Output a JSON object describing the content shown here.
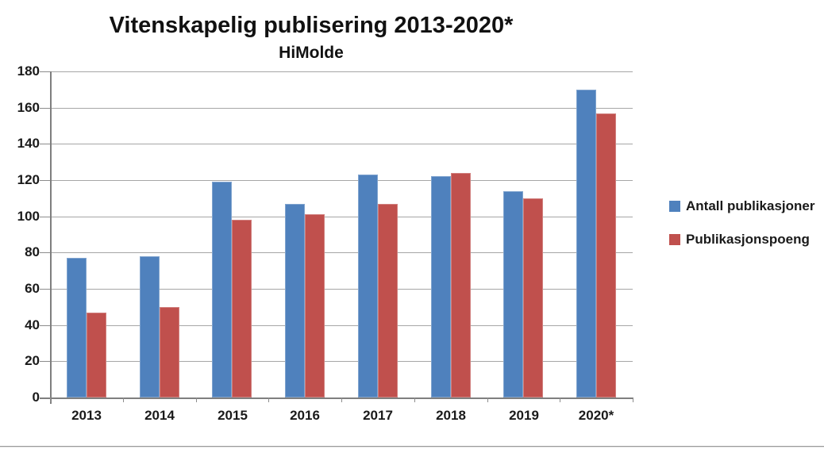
{
  "page": {
    "background": "#ffffff"
  },
  "chart_data": {
    "type": "bar",
    "title": "Vitenskapelig publisering 2013-2020*",
    "subtitle": "HiMolde",
    "categories": [
      "2013",
      "2014",
      "2015",
      "2016",
      "2017",
      "2018",
      "2019",
      "2020*"
    ],
    "series": [
      {
        "name": "Antall publikasjoner",
        "color": "#4F81BD",
        "values": [
          77,
          78,
          119,
          107,
          123,
          122,
          114,
          170
        ]
      },
      {
        "name": "Publikasjonspoeng",
        "color": "#C0504D",
        "values": [
          47,
          50,
          98,
          101,
          107,
          124,
          110,
          157
        ]
      }
    ],
    "xlabel": "",
    "ylabel": "",
    "ylim": [
      0,
      180
    ],
    "ytick_step": 20,
    "yticks": [
      0,
      20,
      40,
      60,
      80,
      100,
      120,
      140,
      160,
      180
    ],
    "grid": true,
    "legend_position": "right",
    "gridline_color": "#a6a6a6",
    "axis_color": "#7f7f7f",
    "text_color": "#1a1a1a"
  }
}
